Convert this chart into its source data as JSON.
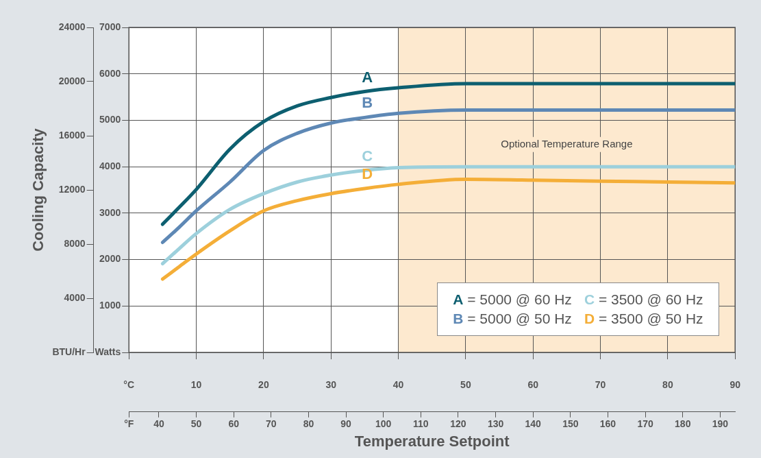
{
  "chart_data": {
    "type": "line",
    "ylabel": "Cooling Capacity",
    "xlabel": "Temperature Setpoint",
    "x": [
      5,
      7.5,
      10,
      15,
      20,
      25,
      30,
      35,
      40,
      50,
      60,
      70,
      80,
      90
    ],
    "series": [
      {
        "name": "A = 5000 @ 60 Hz",
        "color": "#0d5f70",
        "axis": "y2",
        "values": [
          2760,
          3130,
          3510,
          4380,
          4970,
          5310,
          5490,
          5620,
          5700,
          5790,
          5790,
          5790,
          5790,
          5790
        ]
      },
      {
        "name": "B = 5000 @ 50 Hz",
        "color": "#5e88b5",
        "axis": "y2",
        "values": [
          2370,
          2700,
          3050,
          3670,
          4350,
          4720,
          4940,
          5060,
          5150,
          5220,
          5220,
          5220,
          5220,
          5220
        ]
      },
      {
        "name": "C = 3500 @ 60 Hz",
        "color": "#9dd0dc",
        "axis": "y2",
        "values": [
          1910,
          2240,
          2560,
          3080,
          3420,
          3670,
          3820,
          3920,
          3980,
          4000,
          4000,
          4000,
          4000,
          4000
        ]
      },
      {
        "name": "D = 3500 @ 50 Hz",
        "color": "#f4ae38",
        "axis": "y2",
        "values": [
          1580,
          1850,
          2120,
          2620,
          3050,
          3270,
          3420,
          3530,
          3620,
          3730,
          3710,
          3690,
          3670,
          3650
        ]
      }
    ],
    "xlim": [
      0,
      90
    ],
    "xticks": [
      {
        "value": 0,
        "label": "°C"
      },
      10,
      20,
      30,
      40,
      50,
      60,
      70,
      80,
      90
    ],
    "x2lim": [
      32,
      194
    ],
    "x2ticks": [
      {
        "value": 32,
        "label": "°F"
      },
      40,
      50,
      60,
      70,
      80,
      90,
      100,
      110,
      120,
      130,
      140,
      150,
      160,
      170,
      180,
      190
    ],
    "y2lim": [
      0,
      7000
    ],
    "y2ticks": [
      {
        "value": 0,
        "label": "Watts"
      },
      1000,
      2000,
      3000,
      4000,
      5000,
      6000,
      7000
    ],
    "ylim": [
      0,
      24000
    ],
    "yticks": [
      {
        "value": 0,
        "label": "BTU/Hr"
      },
      4000,
      8000,
      12000,
      16000,
      20000,
      24000
    ],
    "bands": [
      {
        "axis": "x",
        "from": 40,
        "to": 90,
        "label": "Optional Temperature Range",
        "color": "#fde9cf"
      }
    ],
    "annotations": [
      "A",
      "B",
      "C",
      "D"
    ],
    "grid": true,
    "legend": "bottom right",
    "marker": "none",
    "line_style": "solid"
  }
}
